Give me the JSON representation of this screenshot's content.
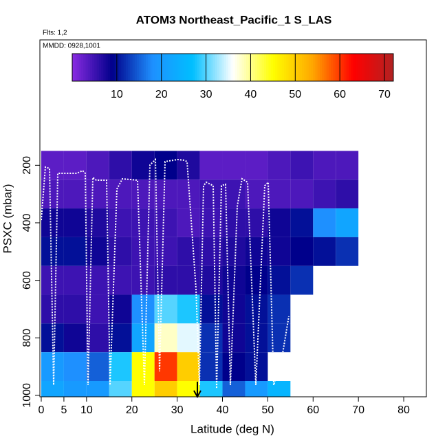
{
  "chart_data": {
    "type": "heatmap",
    "title": "ATOM3 Northeast_Pacific_1 S_LAS",
    "subtitle": "Flts: 1,2",
    "annotation": "MMDD: 0928,1001",
    "x_label": "Latitude (deg N)",
    "y_label": "PSXC (mbar)",
    "x": [
      0,
      5,
      10,
      15,
      20,
      25,
      30,
      35,
      40,
      45,
      50,
      55,
      60,
      65,
      70
    ],
    "y": [
      200,
      300,
      400,
      500,
      600,
      700,
      800,
      900,
      1000
    ],
    "z": [
      [
        3,
        3,
        4,
        6,
        8,
        9,
        7,
        3,
        3,
        3,
        4,
        5,
        4,
        4
      ],
      [
        4,
        4,
        4,
        4,
        4,
        4,
        4,
        5,
        5,
        4,
        4,
        4,
        5,
        6
      ],
      [
        8,
        8,
        7,
        5,
        5,
        5,
        4,
        5,
        6,
        6,
        8,
        10,
        18,
        22
      ],
      [
        10,
        10,
        8,
        6,
        5,
        5,
        6,
        6,
        7,
        8,
        8,
        9,
        10,
        12
      ],
      [
        5,
        5,
        5,
        5,
        5,
        6,
        6,
        7,
        8,
        9,
        10,
        12,
        null,
        null
      ],
      [
        6,
        6,
        5,
        8,
        18,
        30,
        28,
        10,
        8,
        10,
        12,
        null,
        null,
        null
      ],
      [
        10,
        8,
        6,
        10,
        22,
        38,
        35,
        12,
        8,
        10,
        12,
        null,
        null,
        null
      ],
      [
        20,
        18,
        15,
        28,
        45,
        60,
        50,
        12,
        9,
        10,
        null,
        null,
        null,
        null
      ],
      [
        22,
        20,
        20,
        30,
        45,
        50,
        45,
        28,
        15,
        20,
        25,
        null,
        null,
        null
      ]
    ],
    "xlim": [
      -0.3,
      85
    ],
    "ylim": [
      -236,
      1005
    ],
    "xticks": [
      0,
      5,
      10,
      20,
      30,
      40,
      50,
      60,
      70,
      80
    ],
    "yticks": [
      200,
      400,
      600,
      800,
      1000
    ],
    "zlim": [
      0,
      72
    ],
    "zticks": [
      10,
      20,
      30,
      40,
      50,
      60,
      70
    ],
    "colorscale": [
      "#8a2be2",
      "#00008b",
      "#1e90ff",
      "#00bfff",
      "#ffffff",
      "#ffff00",
      "#ffa500",
      "#ff0000",
      "#b22222"
    ]
  }
}
